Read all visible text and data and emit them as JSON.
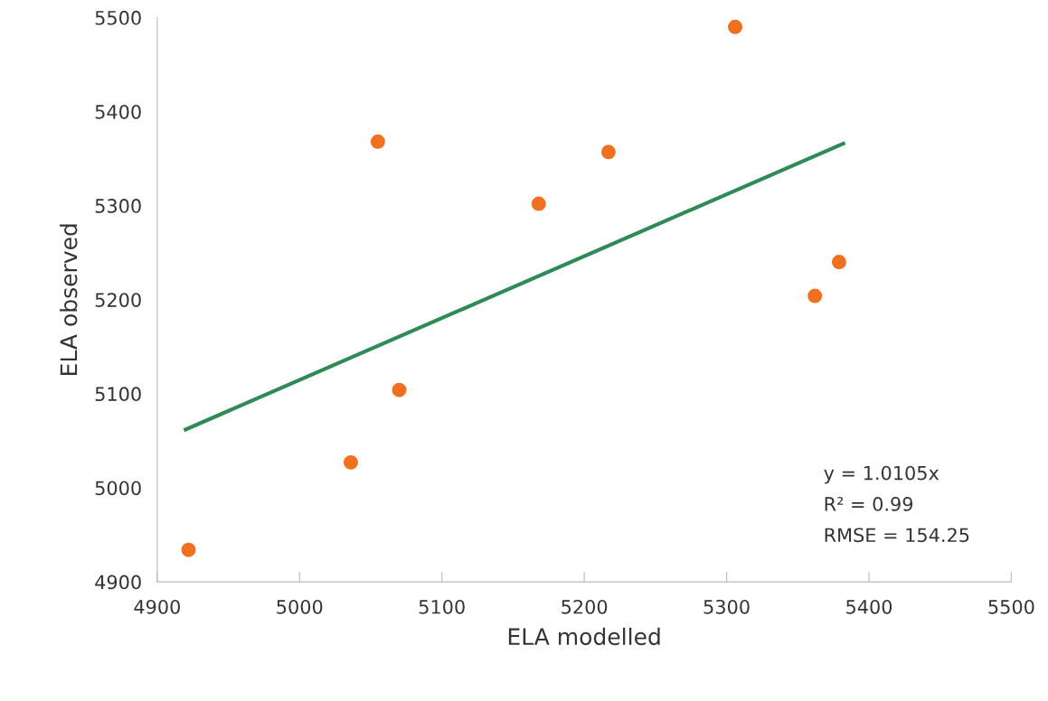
{
  "chart_data": {
    "type": "scatter",
    "xlabel": "ELA modelled",
    "ylabel": "ELA observed",
    "xlim": [
      4900,
      5500
    ],
    "xticks": [
      4900,
      5000,
      5100,
      5200,
      5300,
      5400,
      5500
    ],
    "ylim": [
      4900,
      5500
    ],
    "yticks": [
      4900,
      5000,
      5100,
      5200,
      5300,
      5400,
      5500
    ],
    "grid": false,
    "legend": false,
    "series": [
      {
        "marker": "circle",
        "color": "#f07020",
        "x": [
          4922,
          5036,
          5070,
          5055,
          5168,
          5217,
          5306,
          5362,
          5379
        ],
        "values": [
          4934,
          5027,
          5104,
          5368,
          5302,
          5357,
          5490,
          5204,
          5240
        ]
      },
      {
        "type": "line",
        "color": "#2e8b57",
        "x": [
          4920,
          5382
        ],
        "values": [
          5062,
          5366
        ],
        "line_style": "solid"
      }
    ],
    "annotations": [
      "y = 1.0105x",
      "R² = 0.99",
      "RMSE = 154.25"
    ]
  }
}
